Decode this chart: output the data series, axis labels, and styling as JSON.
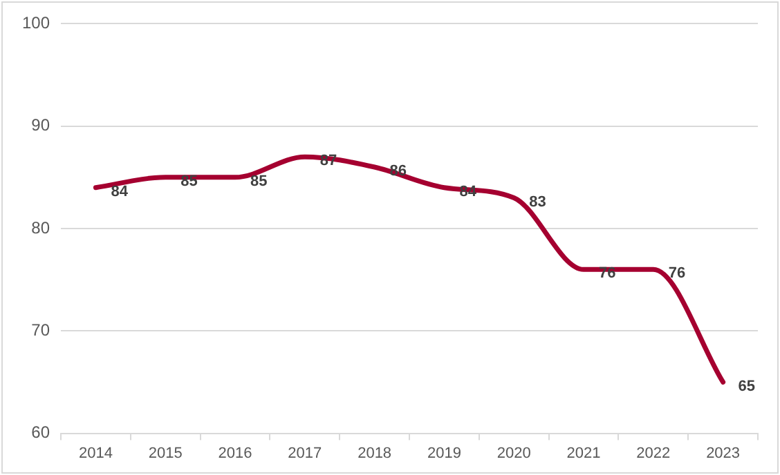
{
  "chart_data": {
    "type": "line",
    "categories": [
      "2014",
      "2015",
      "2016",
      "2017",
      "2018",
      "2019",
      "2020",
      "2021",
      "2022",
      "2023"
    ],
    "series": [
      {
        "color": "#a50030",
        "values": [
          84,
          85,
          85,
          87,
          86,
          84,
          83,
          76,
          76,
          65
        ]
      }
    ],
    "ylim": [
      60,
      100
    ],
    "yticks": [
      60,
      70,
      80,
      90,
      100
    ],
    "grid": "y",
    "legend": false,
    "marker": "none",
    "line_style": "solid",
    "data_labels": true
  }
}
